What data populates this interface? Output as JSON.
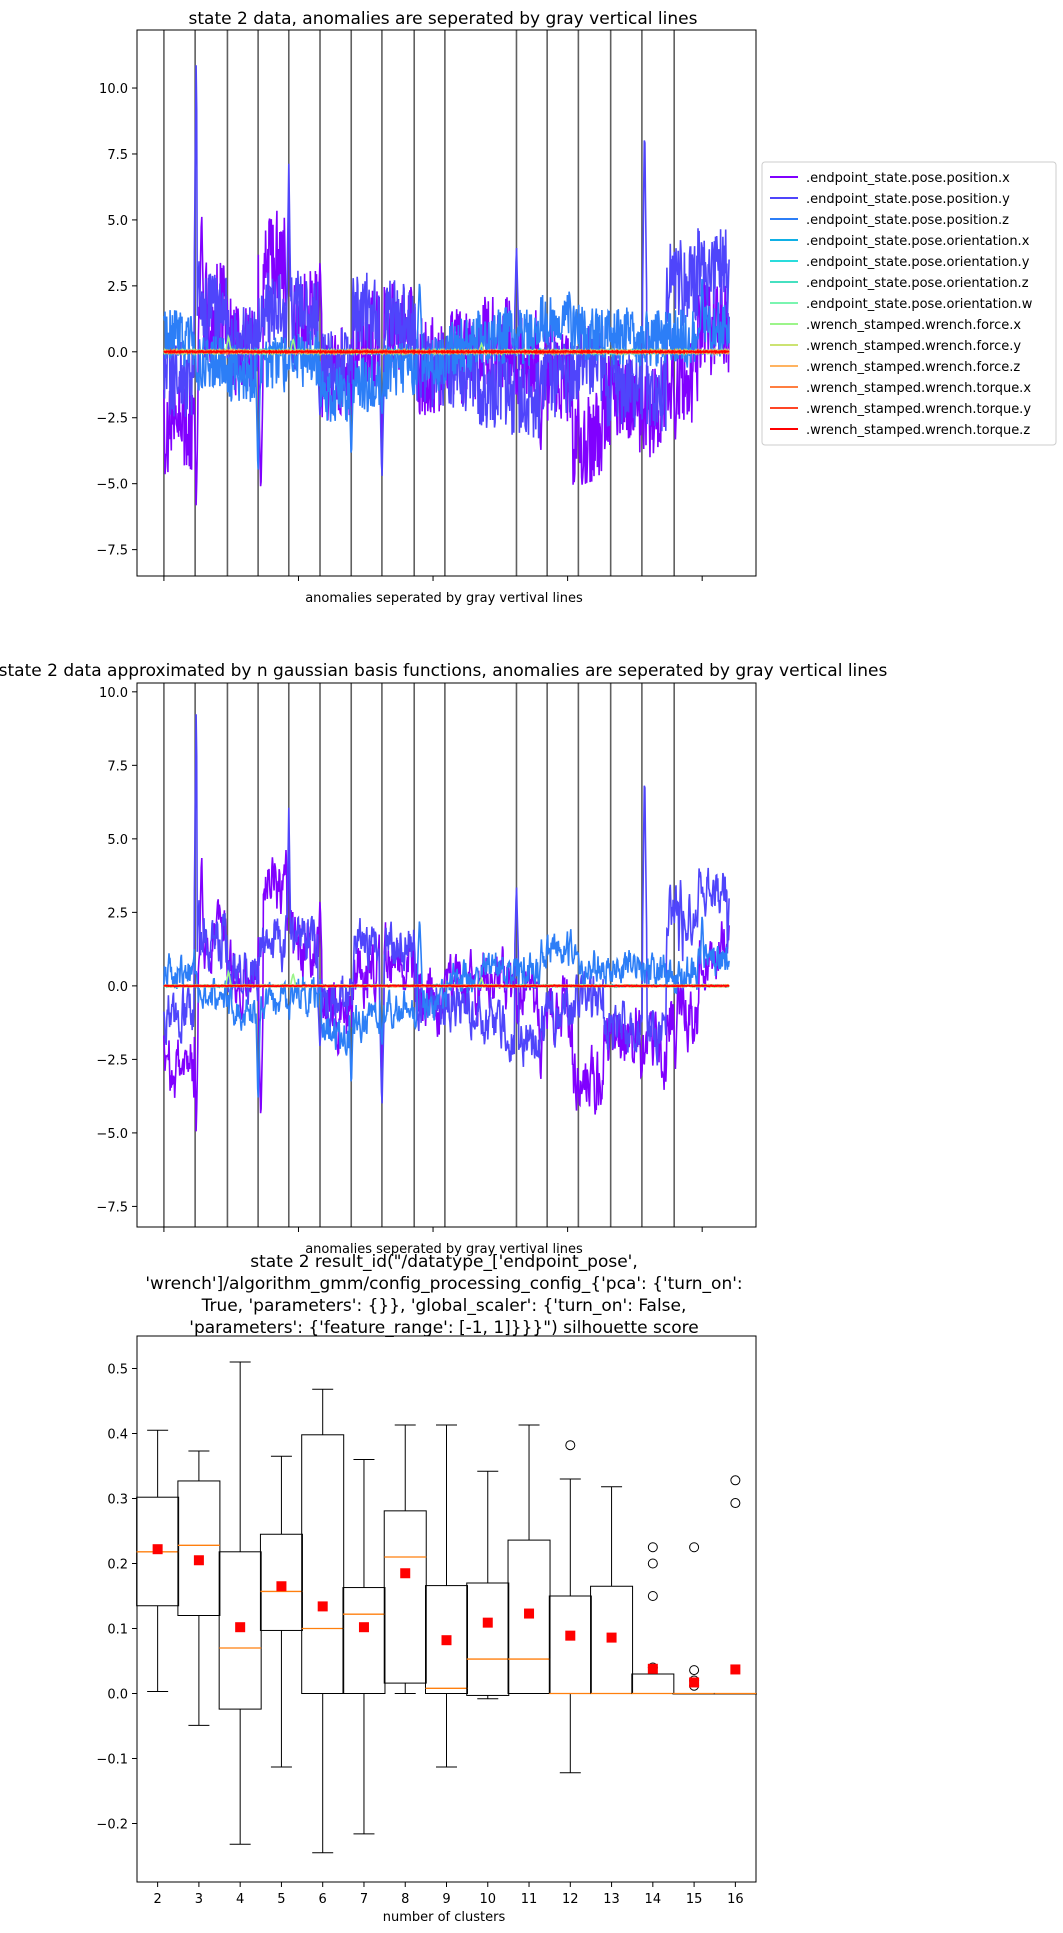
{
  "chart_data": [
    {
      "type": "line",
      "title": "state 2 data, anomalies are seperated by gray vertical lines",
      "xlabel": "anomalies seperated by gray vertival lines",
      "ylabel": "",
      "ylim": [
        -8.5,
        12.2
      ],
      "yticks": [
        -7.5,
        -5.0,
        -2.5,
        0.0,
        2.5,
        5.0,
        7.5,
        10.0
      ],
      "ytick_labels": [
        "−7.5",
        "−5.0",
        "−2.5",
        "0.0",
        "2.5",
        "5.0",
        "7.5",
        "10.0"
      ],
      "xlim": [
        -50,
        1100
      ],
      "xticks": [
        0,
        250,
        500,
        750,
        1000
      ],
      "anomaly_boundaries": [
        0,
        58,
        118,
        175,
        232,
        290,
        348,
        405,
        465,
        522,
        655,
        712,
        770,
        830,
        888,
        948
      ],
      "legend_position": "right",
      "series": [
        {
          "name": ".endpoint_state.pose.position.x",
          "color": "#8000ff",
          "seed": 11,
          "amp": 1.9,
          "profile": [
            -2.8,
            1.5,
            0.2,
            3.5,
            1.2,
            -1,
            0.5,
            1.0,
            -0.5,
            -0.2,
            0.3,
            -0.3,
            -0.8,
            -3.2,
            -1.8,
            -2.3,
            -1.0,
            1.0
          ],
          "spikes": [
            [
              60,
              -6.0
            ],
            [
              70,
              5.5
            ],
            [
              180,
              -5.6
            ],
            [
              232,
              5.8
            ],
            [
              290,
              3.5
            ],
            [
              335,
              -1.5
            ],
            [
              405,
              -3.5
            ],
            [
              700,
              -4.0
            ],
            [
              880,
              -2.5
            ],
            [
              950,
              -3.5
            ]
          ]
        },
        {
          "name": ".endpoint_state.pose.position.y",
          "color": "#4f45fb",
          "seed": 23,
          "amp": 1.5,
          "profile": [
            -1,
            1.5,
            0.3,
            1.5,
            1.6,
            -0.5,
            1.5,
            1.3,
            -0.7,
            -0.8,
            -1.5,
            -1.8,
            -1.0,
            -0.4,
            -1.4,
            -1.6,
            2.6,
            3.2
          ],
          "spikes": [
            [
              60,
              11.2
            ],
            [
              65,
              3.5
            ],
            [
              232,
              7.2
            ],
            [
              290,
              -2.5
            ],
            [
              405,
              -5.0
            ],
            [
              655,
              4.1
            ],
            [
              893,
              8.9
            ],
            [
              960,
              4.5
            ],
            [
              1050,
              3.5
            ]
          ]
        },
        {
          "name": ".endpoint_state.pose.position.z",
          "color": "#2c7ef7",
          "seed": 37,
          "amp": 1.1,
          "profile": [
            0.5,
            -0.4,
            -0.8,
            -0.5,
            -0.3,
            -1.6,
            -1.2,
            -0.7,
            -0.5,
            0.2,
            0.6,
            0.5,
            1.2,
            0.7,
            0.6,
            0.5,
            0.5,
            0.9
          ],
          "spikes": [
            [
              175,
              -4.8
            ],
            [
              348,
              -4.2
            ],
            [
              405,
              -2.5
            ],
            [
              475,
              2.8
            ],
            [
              1000,
              3.0
            ]
          ]
        },
        {
          "name": ".endpoint_state.pose.orientation.x",
          "color": "#0fb0e5",
          "seed": 41,
          "amp": 0.06,
          "profile": [
            0
          ],
          "spikes": []
        },
        {
          "name": ".endpoint_state.pose.orientation.y",
          "color": "#2adcdc",
          "seed": 43,
          "amp": 0.05,
          "profile": [
            0
          ],
          "spikes": []
        },
        {
          "name": ".endpoint_state.pose.orientation.z",
          "color": "#46e0c0",
          "seed": 47,
          "amp": 0.05,
          "profile": [
            0
          ],
          "spikes": []
        },
        {
          "name": ".endpoint_state.pose.orientation.w",
          "color": "#7af5b0",
          "seed": 53,
          "amp": 0.05,
          "profile": [
            0
          ],
          "spikes": []
        },
        {
          "name": ".wrench_stamped.wrench.force.x",
          "color": "#9cf58a",
          "seed": 59,
          "amp": 0.06,
          "profile": [
            0
          ],
          "spikes": [
            [
              120,
              0.6
            ],
            [
              240,
              0.5
            ],
            [
              590,
              0.3
            ]
          ]
        },
        {
          "name": ".wrench_stamped.wrench.force.y",
          "color": "#cce372",
          "seed": 61,
          "amp": 0.05,
          "profile": [
            0
          ],
          "spikes": []
        },
        {
          "name": ".wrench_stamped.wrench.force.z",
          "color": "#ffb360",
          "seed": 67,
          "amp": 0.05,
          "profile": [
            0
          ],
          "spikes": []
        },
        {
          "name": ".wrench_stamped.wrench.torque.x",
          "color": "#ff7e40",
          "seed": 71,
          "amp": 0.04,
          "profile": [
            0
          ],
          "spikes": []
        },
        {
          "name": ".wrench_stamped.wrench.torque.y",
          "color": "#ff4525",
          "seed": 73,
          "amp": 0.04,
          "profile": [
            0
          ],
          "spikes": []
        },
        {
          "name": ".wrench_stamped.wrench.torque.z",
          "color": "#ff0000",
          "seed": 79,
          "amp": 0.03,
          "profile": [
            0
          ],
          "spikes": []
        }
      ]
    },
    {
      "type": "line",
      "title": "state 2 data approximated by n gaussian basis functions, anomalies are seperated by gray vertical lines",
      "xlabel": "anomalies seperated by gray vertival lines",
      "ylabel": "",
      "ylim": [
        -8.2,
        10.3
      ],
      "yticks": [
        -7.5,
        -5.0,
        -2.5,
        0.0,
        2.5,
        5.0,
        7.5,
        10.0
      ],
      "ytick_labels": [
        "−7.5",
        "−5.0",
        "−2.5",
        "0.0",
        "2.5",
        "5.0",
        "7.5",
        "10.0"
      ],
      "xlim": [
        -50,
        1100
      ],
      "xticks": [
        0,
        250,
        500,
        750,
        1000
      ],
      "anomaly_boundaries": [
        0,
        58,
        118,
        175,
        232,
        290,
        348,
        405,
        465,
        522,
        655,
        712,
        770,
        830,
        888,
        948
      ],
      "series_ref": "same as state 2 data, smoothed"
    },
    {
      "type": "box",
      "title": "state 2 result_id(\"/datatype_['endpoint_pose', 'wrench']/algorithm_gmm/config_processing_config_{'pca': {'turn_on': True, 'parameters': {}}, 'global_scaler': {'turn_on': False, 'parameters': {'feature_range': [-1, 1]}}}\") silhouette score",
      "title_lines": [
        "state 2 result_id(\"/datatype_['endpoint_pose',",
        "'wrench']/algorithm_gmm/config_processing_config_{'pca': {'turn_on':",
        "True, 'parameters': {}}, 'global_scaler': {'turn_on': False,",
        "'parameters': {'feature_range': [-1, 1]}}}\") silhouette score"
      ],
      "xlabel": "number of clusters",
      "ylabel": "",
      "ylim": [
        -0.29,
        0.55
      ],
      "yticks": [
        -0.2,
        -0.1,
        0.0,
        0.1,
        0.2,
        0.3,
        0.4,
        0.5
      ],
      "ytick_labels": [
        "−0.2",
        "−0.1",
        "0.0",
        "0.1",
        "0.2",
        "0.3",
        "0.4",
        "0.5"
      ],
      "categories": [
        "2",
        "3",
        "4",
        "5",
        "6",
        "7",
        "8",
        "9",
        "10",
        "11",
        "12",
        "13",
        "14",
        "15",
        "16"
      ],
      "boxes": [
        {
          "whislo": 0.003,
          "q1": 0.135,
          "med": 0.218,
          "q3": 0.302,
          "whishi": 0.405,
          "mean": 0.222,
          "fliers": []
        },
        {
          "whislo": -0.049,
          "q1": 0.12,
          "med": 0.228,
          "q3": 0.327,
          "whishi": 0.373,
          "mean": 0.205,
          "fliers": []
        },
        {
          "whislo": -0.232,
          "q1": -0.024,
          "med": 0.07,
          "q3": 0.218,
          "whishi": 0.51,
          "mean": 0.102,
          "fliers": []
        },
        {
          "whislo": -0.113,
          "q1": 0.097,
          "med": 0.157,
          "q3": 0.245,
          "whishi": 0.365,
          "mean": 0.165,
          "fliers": []
        },
        {
          "whislo": -0.245,
          "q1": 0.0,
          "med": 0.1,
          "q3": 0.398,
          "whishi": 0.468,
          "mean": 0.134,
          "fliers": []
        },
        {
          "whislo": -0.216,
          "q1": 0.0,
          "med": 0.122,
          "q3": 0.163,
          "whishi": 0.36,
          "mean": 0.102,
          "fliers": []
        },
        {
          "whislo": 0.0,
          "q1": 0.016,
          "med": 0.21,
          "q3": 0.281,
          "whishi": 0.413,
          "mean": 0.185,
          "fliers": []
        },
        {
          "whislo": -0.113,
          "q1": 0.0,
          "med": 0.008,
          "q3": 0.166,
          "whishi": 0.413,
          "mean": 0.082,
          "fliers": []
        },
        {
          "whislo": -0.008,
          "q1": -0.003,
          "med": 0.053,
          "q3": 0.17,
          "whishi": 0.342,
          "mean": 0.109,
          "fliers": []
        },
        {
          "whislo": 0.0,
          "q1": 0.0,
          "med": 0.053,
          "q3": 0.236,
          "whishi": 0.413,
          "mean": 0.123,
          "fliers": []
        },
        {
          "whislo": -0.122,
          "q1": 0.0,
          "med": 0.0,
          "q3": 0.15,
          "whishi": 0.33,
          "mean": 0.089,
          "fliers": [
            0.382
          ]
        },
        {
          "whislo": 0.0,
          "q1": 0.0,
          "med": 0.0,
          "q3": 0.165,
          "whishi": 0.318,
          "mean": 0.086,
          "fliers": []
        },
        {
          "whislo": 0.0,
          "q1": 0.0,
          "med": 0.0,
          "q3": 0.03,
          "whishi": 0.03,
          "mean": 0.038,
          "fliers": [
            0.15,
            0.2,
            0.225,
            0.04
          ]
        },
        {
          "whislo": 0.0,
          "q1": 0.0,
          "med": 0.0,
          "q3": 0.0,
          "whishi": 0.0,
          "mean": 0.017,
          "fliers": [
            0.225,
            0.036,
            0.012,
            0.02
          ]
        },
        {
          "whislo": 0.0,
          "q1": 0.0,
          "med": 0.0,
          "q3": 0.0,
          "whishi": 0.0,
          "mean": 0.037,
          "fliers": [
            0.293,
            0.328
          ]
        }
      ],
      "box_color": "#000000",
      "median_color": "#ff7f0e",
      "mean_color": "#ff0000"
    }
  ]
}
